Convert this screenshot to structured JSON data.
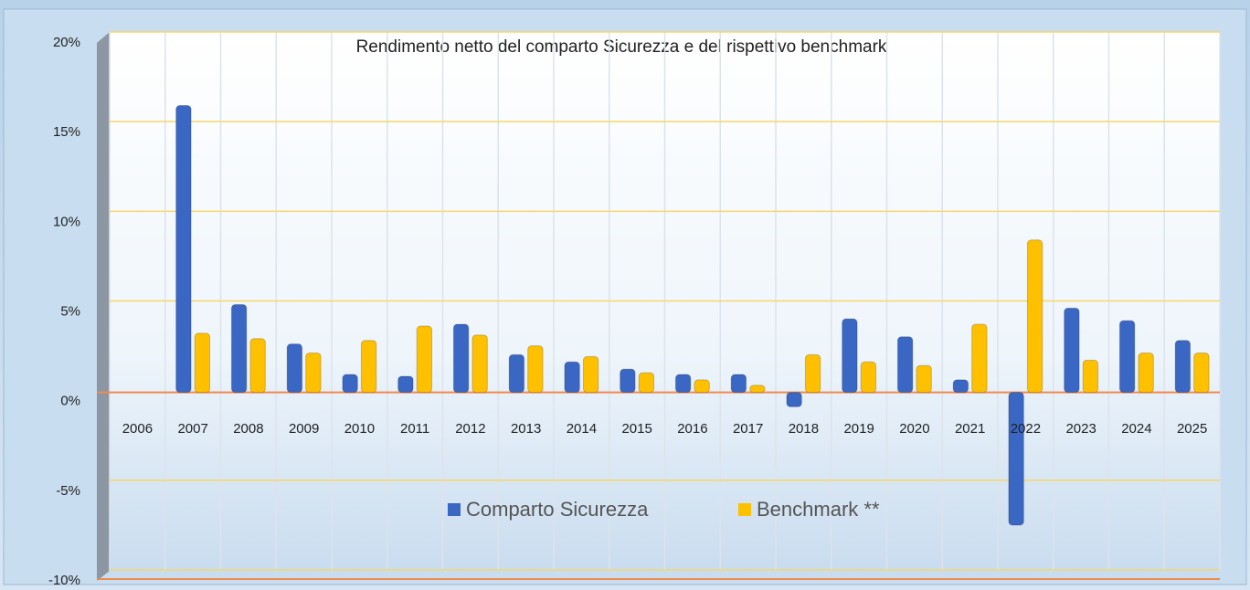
{
  "chart_data": {
    "type": "bar",
    "title": "Rendimento netto del comparto Sicurezza e del rispettivo  benchmark",
    "categories": [
      "2006",
      "2007",
      "2008",
      "2009",
      "2010",
      "2011",
      "2012",
      "2013",
      "2014",
      "2015",
      "2016",
      "2017",
      "2018",
      "2019",
      "2020",
      "2021",
      "2022",
      "2023",
      "2024",
      "2025"
    ],
    "series": [
      {
        "name": "Comparto Sicurezza",
        "color": "#3a66c4",
        "values": [
          null,
          16.0,
          4.9,
          2.7,
          1.0,
          0.9,
          3.8,
          2.1,
          1.7,
          1.3,
          1.0,
          1.0,
          -0.8,
          4.1,
          3.1,
          0.7,
          -7.4,
          4.7,
          4.0,
          2.9
        ]
      },
      {
        "name": "Benchmark **",
        "color": "#ffc000",
        "values": [
          null,
          3.3,
          3.0,
          2.2,
          2.9,
          3.7,
          3.2,
          2.6,
          2.0,
          1.1,
          0.7,
          0.4,
          2.1,
          1.7,
          1.5,
          3.8,
          8.5,
          1.8,
          2.2,
          2.2
        ]
      }
    ],
    "ylim": [
      -10,
      20
    ],
    "yticks": [
      {
        "value": -10,
        "label": "-10%"
      },
      {
        "value": -5,
        "label": "-5%"
      },
      {
        "value": 0,
        "label": "0%"
      },
      {
        "value": 5,
        "label": "5%"
      },
      {
        "value": 10,
        "label": "10%"
      },
      {
        "value": 15,
        "label": "15%"
      },
      {
        "value": 20,
        "label": "20%"
      }
    ],
    "grid": true
  }
}
